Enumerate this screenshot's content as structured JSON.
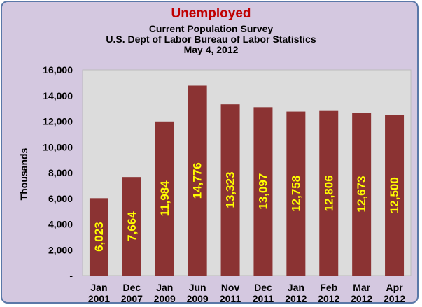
{
  "chart_data": {
    "type": "bar",
    "title": "Unemployed",
    "subtitle": [
      "Current Population Survey",
      "U.S. Dept of Labor Bureau of Labor Statistics",
      "May 4, 2012"
    ],
    "xlabel": "",
    "ylabel": "Thousands",
    "ylim": [
      0,
      16000
    ],
    "yticks": [
      0,
      2000,
      4000,
      6000,
      8000,
      10000,
      12000,
      14000,
      16000
    ],
    "ytick_labels": [
      "-",
      "2,000",
      "4,000",
      "6,000",
      "8,000",
      "10,000",
      "12,000",
      "14,000",
      "16,000"
    ],
    "categories": [
      [
        "Jan",
        "2001"
      ],
      [
        "Dec",
        "2007"
      ],
      [
        "Jan",
        "2009"
      ],
      [
        "Jun",
        "2009"
      ],
      [
        "Nov",
        "2011"
      ],
      [
        "Dec",
        "2011"
      ],
      [
        "Jan",
        "2012"
      ],
      [
        "Feb",
        "2012"
      ],
      [
        "Mar",
        "2012"
      ],
      [
        "Apr",
        "2012"
      ]
    ],
    "values": [
      6023,
      7664,
      11984,
      14776,
      13323,
      13097,
      12758,
      12806,
      12673,
      12500
    ],
    "value_labels": [
      "6,023",
      "7,664",
      "11,984",
      "14,776",
      "13,323",
      "13,097",
      "12,758",
      "12,806",
      "12,673",
      "12,500"
    ],
    "grid": false,
    "legend": "none",
    "colors": {
      "bar": "#8b3333",
      "data_label": "#ffff00",
      "title": "#c00000",
      "plot_bg": "#dcdcdc",
      "frame_bg": "#d4c8e0"
    }
  }
}
